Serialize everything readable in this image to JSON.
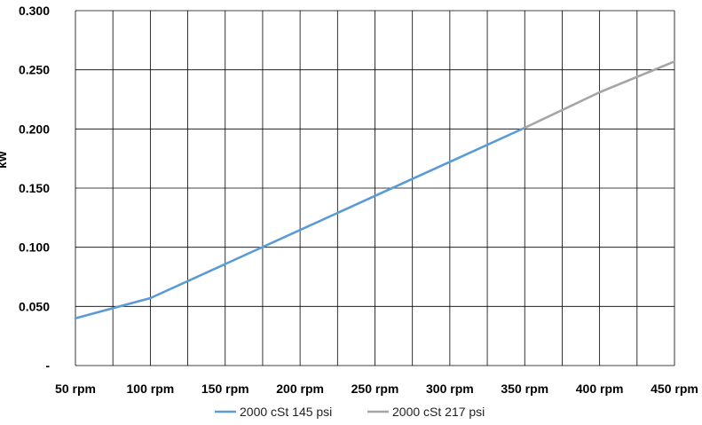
{
  "chart_data": {
    "type": "line",
    "title": "",
    "xlabel": "",
    "ylabel": "kW",
    "categories": [
      "50 rpm",
      "100 rpm",
      "150 rpm",
      "200 rpm",
      "250 rpm",
      "300 rpm",
      "350 rpm",
      "400 rpm",
      "450 rpm"
    ],
    "y_tick_labels": [
      "-",
      "0.050",
      "0.100",
      "0.150",
      "0.200",
      "0.250",
      "0.300"
    ],
    "ylim": [
      0,
      0.3
    ],
    "grid": true,
    "legend_position": "bottom",
    "series": [
      {
        "name": "2000 cSt 145 psi",
        "color": "#5b9bd5",
        "x": [
          50,
          100,
          350
        ],
        "values": [
          0.04,
          0.057,
          0.201
        ]
      },
      {
        "name": "2000 cSt 217 psi",
        "color": "#a5a5a5",
        "x": [
          350,
          400,
          450
        ],
        "values": [
          0.201,
          0.231,
          0.257
        ]
      }
    ]
  }
}
